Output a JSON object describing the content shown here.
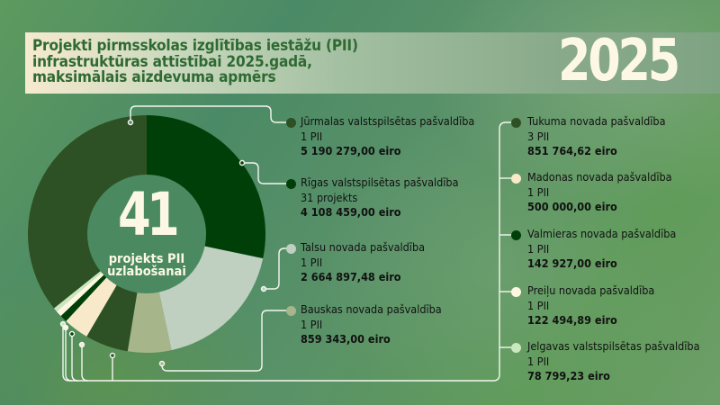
{
  "header": {
    "title_lines": [
      "Projekti pirmsskolas izglītības iestāžu (PII)",
      "infrastruktūras attīstībai 2025.gadā,",
      "maksimālais aizdevuma apmērs"
    ],
    "year": "2025"
  },
  "center": {
    "number": "41",
    "label_lines": [
      "projekts PII",
      "uzlabošanai"
    ]
  },
  "entries": [
    {
      "name": "Jūrmalas valstspilsētas pašvaldība",
      "count": "1 PII",
      "amount": "5 190 279,00 eiro",
      "color": "#2d5024"
    },
    {
      "name": "Rīgas valstspilsētas pašvaldība",
      "count": "31  projekts",
      "amount": "4 108 459,00 eiro",
      "color": "#004008"
    },
    {
      "name": "Talsu novada pašvaldība",
      "count": "1 PII",
      "amount": "2 664 897,48 eiro",
      "color": "#bfd0c0"
    },
    {
      "name": "Bauskas novada pašvaldība",
      "count": "1 PII",
      "amount": "859 343,00 eiro",
      "color": "#a7b58b"
    },
    {
      "name": "Tukuma novada pašvaldība",
      "count": "3 PII",
      "amount": "851 764,62 eiro",
      "color": "#2d5024"
    },
    {
      "name": "Madonas novada pašvaldība",
      "count": "1 PII",
      "amount": "500 000,00 eiro",
      "color": "#f7e9c9"
    },
    {
      "name": "Valmieras novada pašvaldība",
      "count": "1 PII",
      "amount": "142 927,00 eiro",
      "color": "#004008"
    },
    {
      "name": "Preiļu novada pašvaldība",
      "count": "1 PII",
      "amount": "122 494,89 eiro",
      "color": "#fdf7e2"
    },
    {
      "name": "Jelgavas valstspilsētas pašvaldība",
      "count": "1 PII",
      "amount": "78 799,23 eiro",
      "color": "#c9e8bf"
    }
  ],
  "chart_data": {
    "type": "pie",
    "variant": "donut",
    "title": "Projekti pirmsskolas izglītības iestāžu (PII) infrastruktūras attīstībai 2025.gadā, maksimālais aizdevuma apmērs",
    "center_text": "41 projekts PII uzlabošanai",
    "unit": "eiro",
    "categories": [
      "Jūrmalas valstspilsētas pašvaldība",
      "Rīgas valstspilsētas pašvaldība",
      "Talsu novada pašvaldība",
      "Bauskas novada pašvaldība",
      "Tukuma novada pašvaldība",
      "Madonas novada pašvaldība",
      "Valmieras novada pašvaldība",
      "Preiļu novada pašvaldība",
      "Jelgavas valstspilsētas pašvaldība"
    ],
    "values": [
      5190279.0,
      4108459.0,
      2664897.48,
      859343.0,
      851764.62,
      500000.0,
      142927.0,
      122494.89,
      78799.23
    ],
    "project_counts": [
      1,
      31,
      1,
      1,
      3,
      1,
      1,
      1,
      1
    ],
    "colors": [
      "#2d5024",
      "#004008",
      "#bfd0c0",
      "#a7b58b",
      "#2d5024",
      "#f7e9c9",
      "#004008",
      "#fdf7e2",
      "#c9e8bf"
    ],
    "legend_position": "right"
  }
}
